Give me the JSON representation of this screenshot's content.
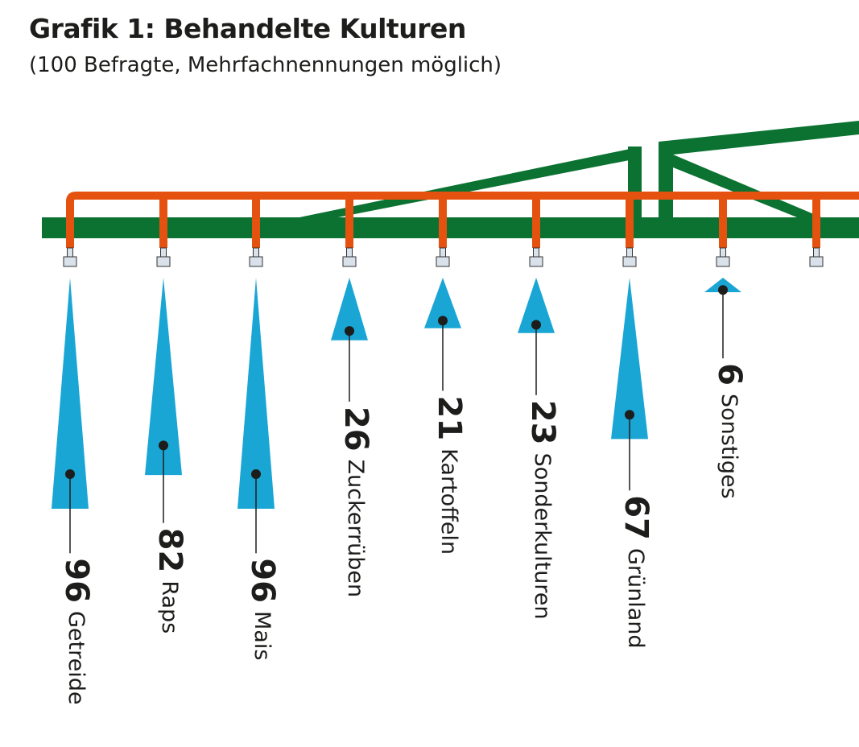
{
  "title": "Grafik 1: Behandelte Kulturen",
  "subtitle": "(100 Befragte, Mehrfachnennungen möglich)",
  "colors": {
    "boom": "#0b7232",
    "pipe": "#e5520f",
    "spray": "#1aa6d5",
    "nozzle": "#d9e1ea"
  },
  "chart_data": {
    "type": "bar",
    "orientation": "vertical-downward",
    "title": "Grafik 1: Behandelte Kulturen",
    "subtitle": "(100 Befragte, Mehrfachnennungen möglich)",
    "categories": [
      "Getreide",
      "Raps",
      "Mais",
      "Zuckerrüben",
      "Kartoffeln",
      "Sonderkulturen",
      "Grünland",
      "Sonstiges"
    ],
    "values": [
      96,
      82,
      96,
      26,
      21,
      23,
      67,
      6
    ],
    "value_labels": [
      "96",
      "82",
      "96",
      "26",
      "21",
      "23",
      "67",
      "6"
    ],
    "ylim": [
      0,
      100
    ]
  }
}
